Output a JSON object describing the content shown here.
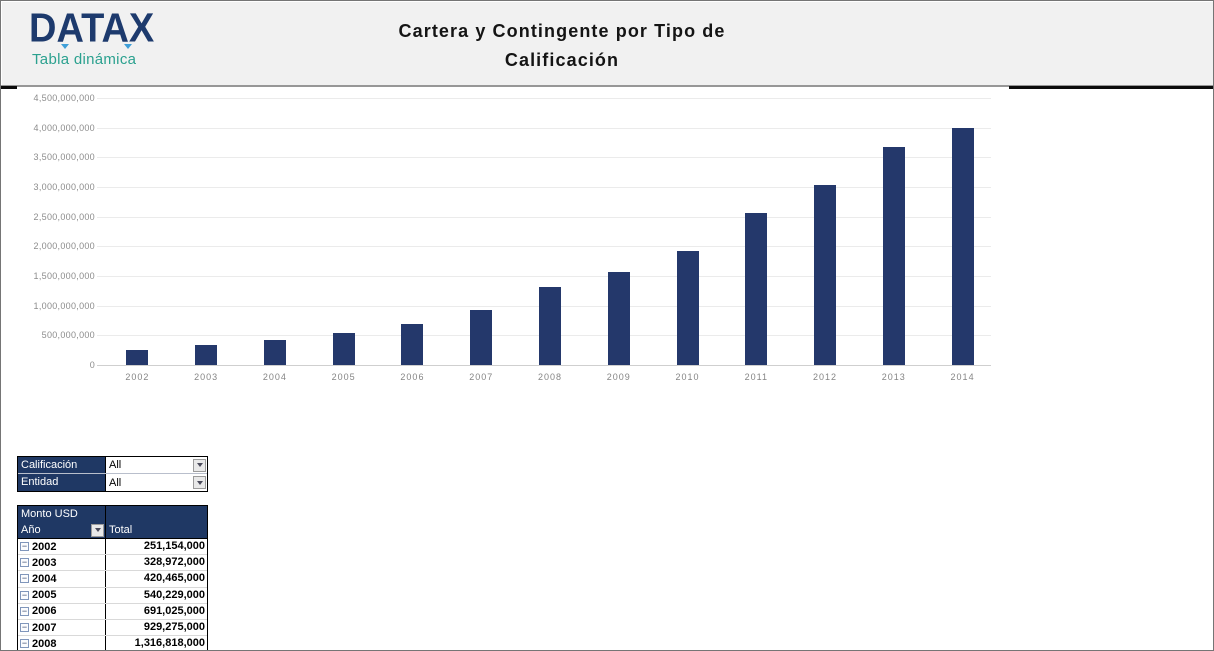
{
  "logo": {
    "brand": "DATAX",
    "subtitle": "Tabla dinámica",
    "brand_color": "#1d3a6d",
    "subtitle_color": "#2ba18f",
    "accent_color": "#3f9fd8"
  },
  "title": {
    "line1": "Cartera y Contingente por Tipo de",
    "line2": "Calificación"
  },
  "chart_data": {
    "type": "bar",
    "title": "Cartera y Contingente por Tipo de Calificación",
    "categories": [
      "2002",
      "2003",
      "2004",
      "2005",
      "2006",
      "2007",
      "2008",
      "2009",
      "2010",
      "2011",
      "2012",
      "2013",
      "2014"
    ],
    "values": [
      251154000,
      328972000,
      420465000,
      540229000,
      691025000,
      929275000,
      1316818000,
      1570000000,
      1920000000,
      2560000000,
      3030000000,
      3670000000,
      4000000000
    ],
    "xlabel": "",
    "ylabel": "",
    "ylim": [
      0,
      4500000000
    ],
    "ytick_step": 500000000,
    "ytick_labels": [
      "0",
      "500,000,000",
      "1,000,000,000",
      "1,500,000,000",
      "2,000,000,000",
      "2,500,000,000",
      "3,000,000,000",
      "3,500,000,000",
      "4,000,000,000",
      "4,500,000,000"
    ],
    "bar_color": "#24386b",
    "grid": true,
    "legend": "none"
  },
  "filters": [
    {
      "label": "Calificación",
      "value": "All"
    },
    {
      "label": "Entidad",
      "value": "All"
    }
  ],
  "pivot": {
    "header1": "Monto USD",
    "row_label": "Año",
    "value_label": "Total",
    "header_bg": "#1f3864",
    "rows": [
      {
        "year": "2002",
        "total": "251,154,000"
      },
      {
        "year": "2003",
        "total": "328,972,000"
      },
      {
        "year": "2004",
        "total": "420,465,000"
      },
      {
        "year": "2005",
        "total": "540,229,000"
      },
      {
        "year": "2006",
        "total": "691,025,000"
      },
      {
        "year": "2007",
        "total": "929,275,000"
      },
      {
        "year": "2008",
        "total": "1,316,818,000"
      }
    ]
  },
  "icons": {
    "collapse": "−"
  }
}
